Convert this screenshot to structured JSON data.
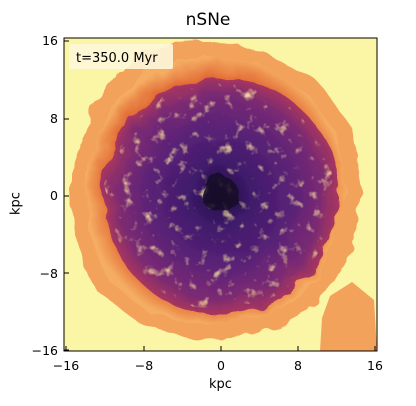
{
  "figure": {
    "title": "nSNe",
    "xlabel": "kpc",
    "ylabel": "kpc",
    "time_label": "t=350.0 Myr"
  },
  "axes": {
    "xlim": [
      -16,
      16
    ],
    "ylim": [
      -16,
      16
    ],
    "xticks": [
      -16,
      -8,
      0,
      8,
      16
    ],
    "yticks": [
      16,
      8,
      0,
      -8,
      -16
    ],
    "xtick_labels": [
      "−16",
      "−8",
      "0",
      "8",
      "16"
    ],
    "ytick_labels": [
      "16",
      "8",
      "0",
      "−8",
      "−16"
    ]
  },
  "colors": {
    "background": "#fbf5a6",
    "ring_outer": "#f3a25c",
    "ring_mid": "#d9582f",
    "disk_dark": "#3e1a6b",
    "disk_mid": "#6a2678",
    "hot": "#f6c85a"
  }
}
